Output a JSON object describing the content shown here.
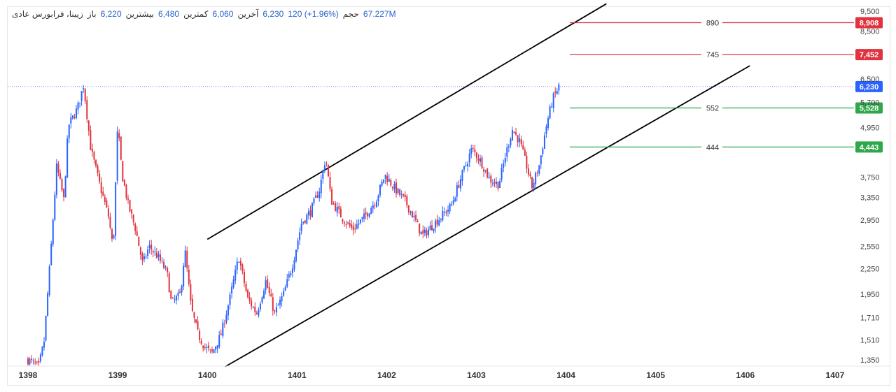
{
  "legend": {
    "name": "زیبنا، فرابورس عادی",
    "open_label": "باز",
    "open": "6,220",
    "high_label": "بیشترین",
    "high": "6,480",
    "low_label": "کمترین",
    "low": "6,060",
    "last_label": "آخرین",
    "last": "6,230",
    "change": "120 (+1.96%)",
    "volume_label": "حجم",
    "volume": "67.227M"
  },
  "colors": {
    "up": "#2962ff",
    "down": "#e0333f",
    "resistance": "#e0333f",
    "support": "#2ea84a",
    "channel": "#000000",
    "current": "#2962ff"
  },
  "chart_data": {
    "type": "candlestick",
    "y_scale": "log",
    "y_ticks": [
      "9,500",
      "8,500",
      "6,500",
      "5,700",
      "4,950",
      "3,750",
      "3,350",
      "2,950",
      "2,550",
      "2,250",
      "1,950",
      "1,710",
      "1,510",
      "1,350"
    ],
    "x_ticks": [
      "1398",
      "1399",
      "1400",
      "1401",
      "1402",
      "1403",
      "1404",
      "1405",
      "1406",
      "1407"
    ],
    "current_price": {
      "value": 6230,
      "label": "6,230"
    },
    "levels": [
      {
        "label": "890",
        "value": 8908,
        "tag": "8,908",
        "kind": "resistance"
      },
      {
        "label": "745",
        "value": 7452,
        "tag": "7,452",
        "kind": "resistance"
      },
      {
        "label": "552",
        "value": 5528,
        "tag": "5,528",
        "kind": "support"
      },
      {
        "label": "444",
        "value": 4443,
        "tag": "4,443",
        "kind": "support"
      }
    ],
    "channel": {
      "upper": [
        {
          "x": 1400.0,
          "y": 2650
        },
        {
          "x": 1404.45,
          "y": 9900
        }
      ],
      "lower": [
        {
          "x": 1400.2,
          "y": 1300
        },
        {
          "x": 1406.05,
          "y": 7000
        }
      ]
    },
    "price_path": [
      [
        1398.0,
        1350
      ],
      [
        1398.12,
        1300
      ],
      [
        1398.18,
        1500
      ],
      [
        1398.25,
        2400
      ],
      [
        1398.32,
        4000
      ],
      [
        1398.4,
        3300
      ],
      [
        1398.45,
        5000
      ],
      [
        1398.55,
        5500
      ],
      [
        1398.62,
        6300
      ],
      [
        1398.7,
        4400
      ],
      [
        1398.8,
        3600
      ],
      [
        1398.9,
        3000
      ],
      [
        1398.95,
        2500
      ],
      [
        1399.0,
        5000
      ],
      [
        1399.05,
        3800
      ],
      [
        1399.12,
        3200
      ],
      [
        1399.2,
        2800
      ],
      [
        1399.28,
        2300
      ],
      [
        1399.35,
        2550
      ],
      [
        1399.45,
        2400
      ],
      [
        1399.55,
        2200
      ],
      [
        1399.6,
        1850
      ],
      [
        1399.7,
        1950
      ],
      [
        1399.75,
        2500
      ],
      [
        1399.82,
        1800
      ],
      [
        1399.9,
        1550
      ],
      [
        1399.97,
        1450
      ],
      [
        1400.05,
        1400
      ],
      [
        1400.15,
        1550
      ],
      [
        1400.25,
        1900
      ],
      [
        1400.35,
        2400
      ],
      [
        1400.45,
        1900
      ],
      [
        1400.55,
        1750
      ],
      [
        1400.65,
        2100
      ],
      [
        1400.75,
        1750
      ],
      [
        1400.85,
        1950
      ],
      [
        1400.95,
        2300
      ],
      [
        1401.05,
        2900
      ],
      [
        1401.15,
        3100
      ],
      [
        1401.25,
        3500
      ],
      [
        1401.32,
        4200
      ],
      [
        1401.38,
        3300
      ],
      [
        1401.5,
        3000
      ],
      [
        1401.62,
        2800
      ],
      [
        1401.75,
        3000
      ],
      [
        1401.88,
        3300
      ],
      [
        1401.98,
        3800
      ],
      [
        1402.1,
        3500
      ],
      [
        1402.2,
        3300
      ],
      [
        1402.3,
        3000
      ],
      [
        1402.4,
        2700
      ],
      [
        1402.5,
        2850
      ],
      [
        1402.6,
        3000
      ],
      [
        1402.72,
        3200
      ],
      [
        1402.82,
        3700
      ],
      [
        1402.95,
        4400
      ],
      [
        1403.05,
        4100
      ],
      [
        1403.15,
        3700
      ],
      [
        1403.25,
        3600
      ],
      [
        1403.32,
        4200
      ],
      [
        1403.4,
        4900
      ],
      [
        1403.48,
        4600
      ],
      [
        1403.56,
        4000
      ],
      [
        1403.62,
        3550
      ],
      [
        1403.7,
        4000
      ],
      [
        1403.78,
        5000
      ],
      [
        1403.85,
        5800
      ],
      [
        1403.92,
        6230
      ]
    ]
  }
}
